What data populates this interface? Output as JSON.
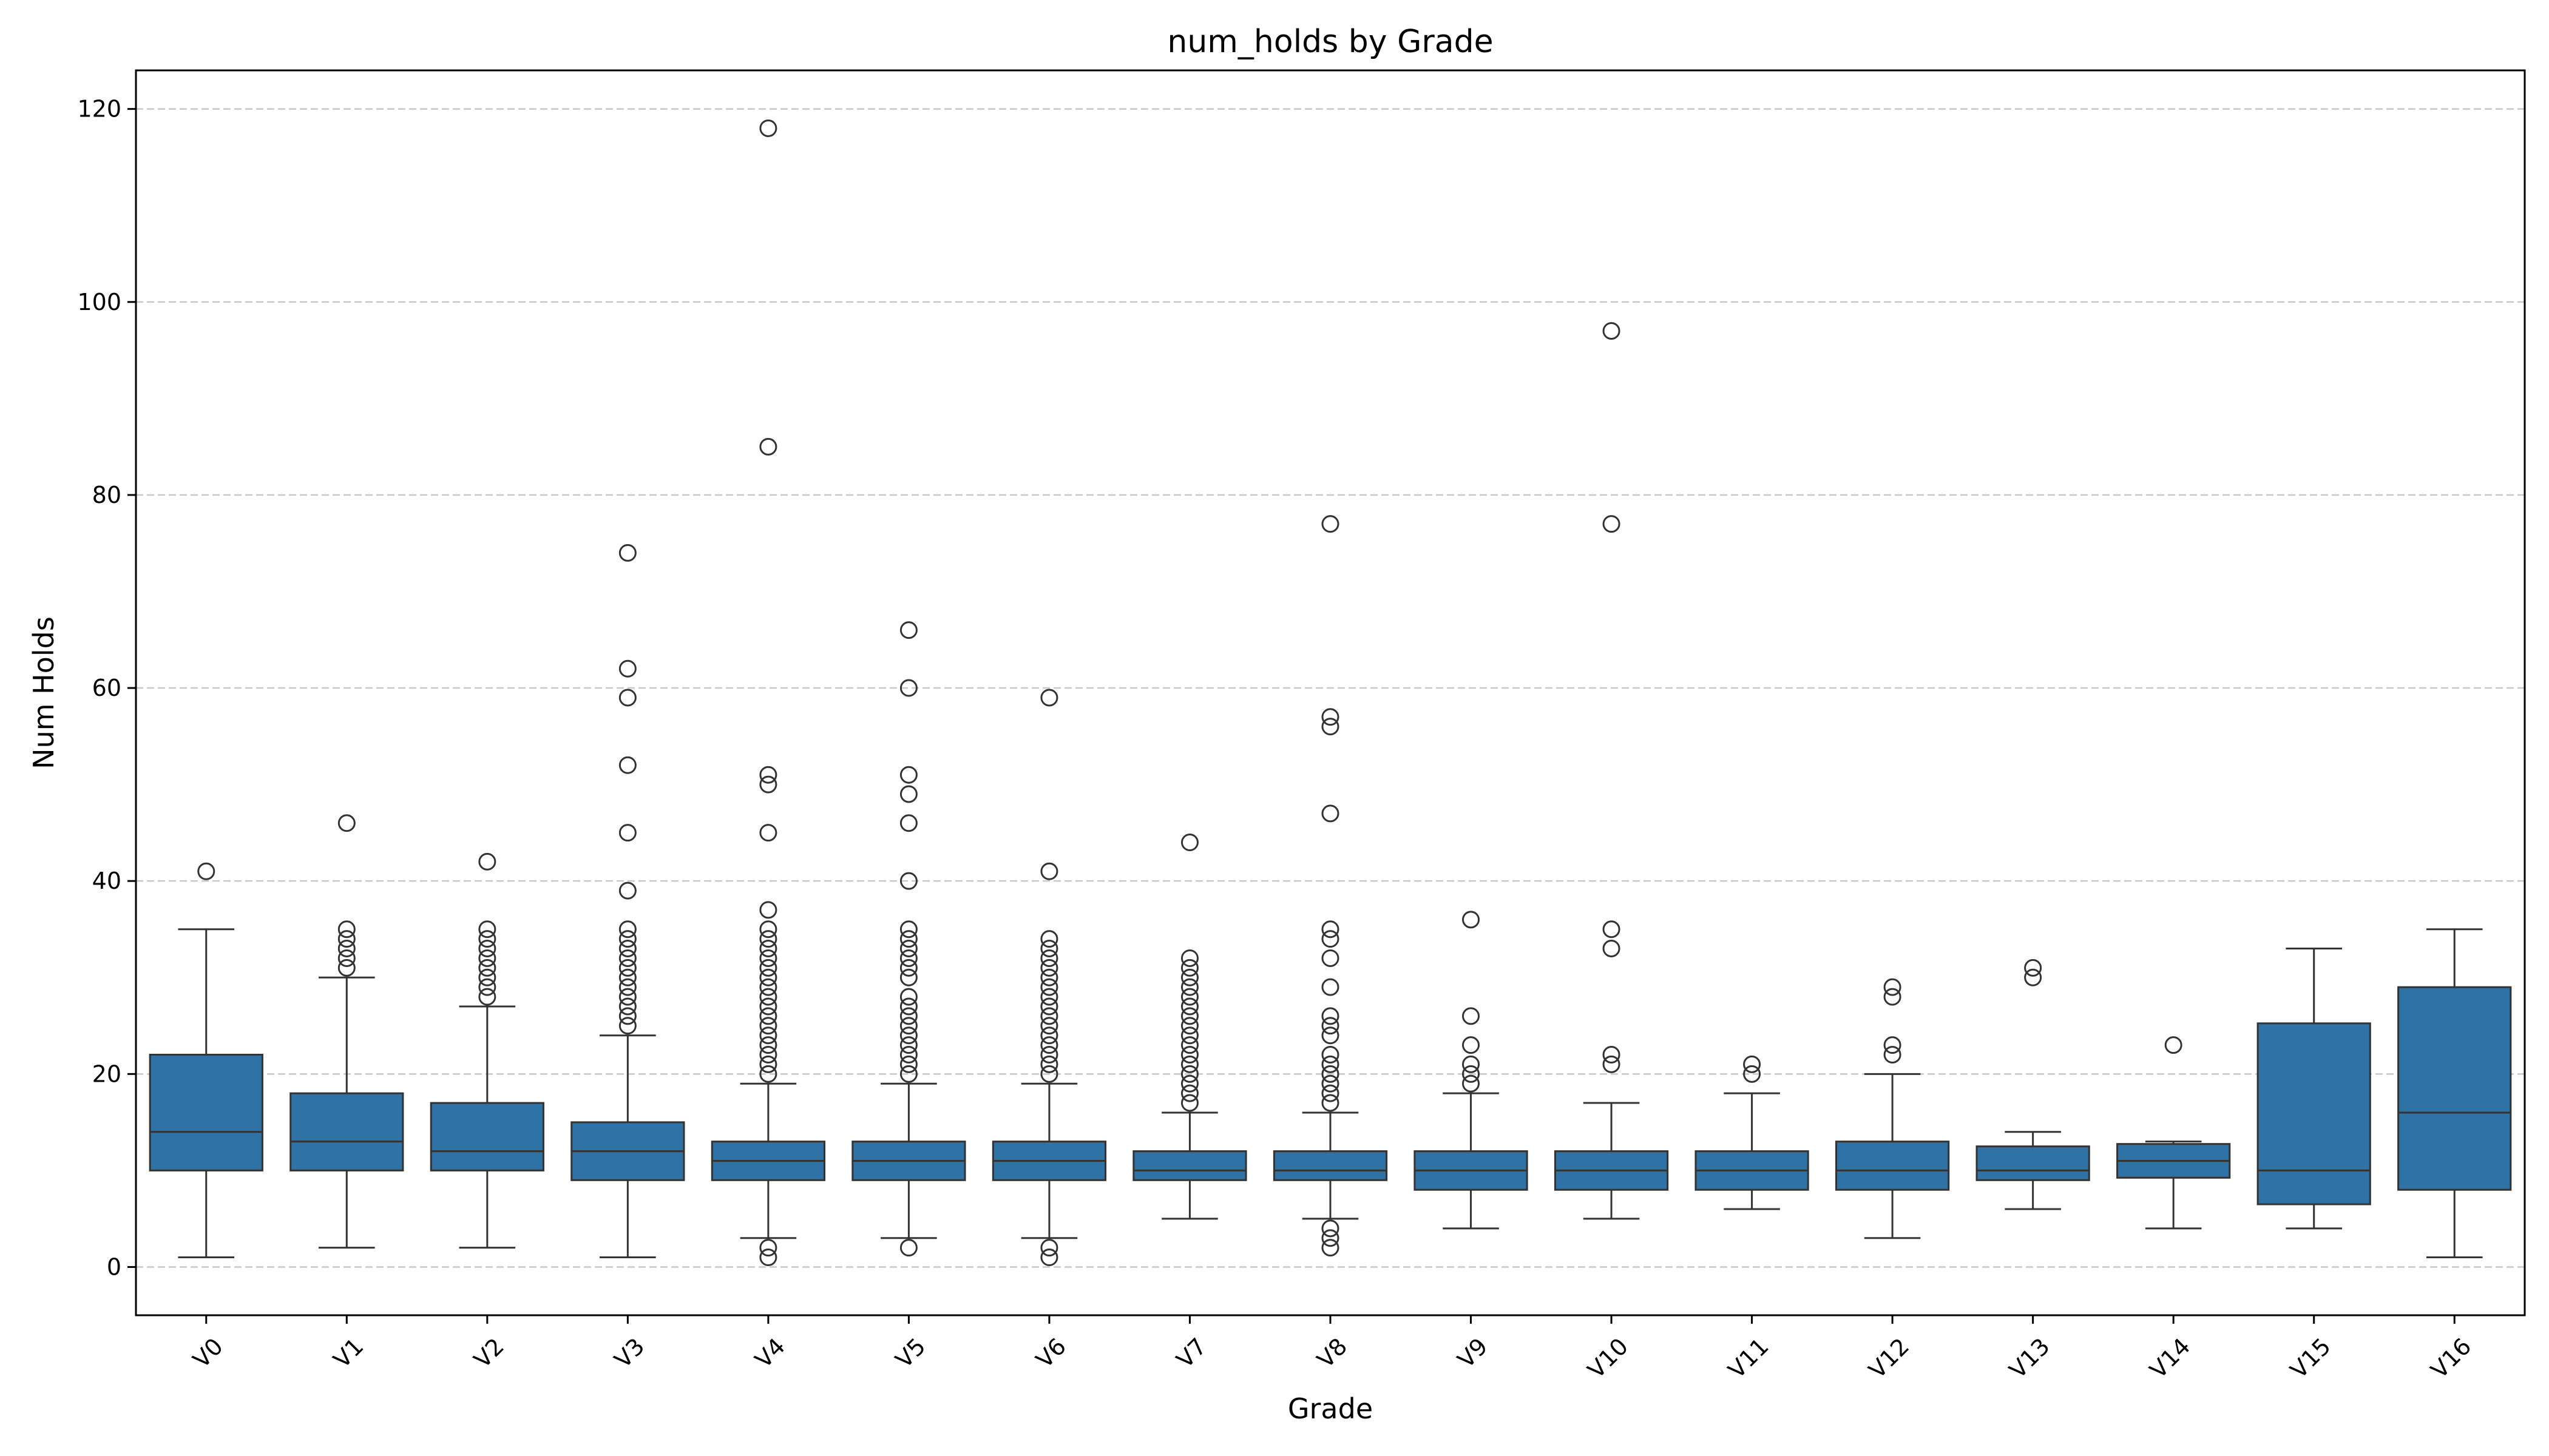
{
  "chart_data": {
    "type": "box",
    "title": "num_holds by Grade",
    "xlabel": "Grade",
    "ylabel": "Num Holds",
    "ylim": [
      -5,
      124
    ],
    "yticks": [
      0,
      20,
      40,
      60,
      80,
      100,
      120
    ],
    "grid": "y-dashed",
    "colors": {
      "box_fill": "#2e72a6",
      "line": "#333333",
      "grid": "#c8c8c8"
    },
    "categories": [
      "V0",
      "V1",
      "V2",
      "V3",
      "V4",
      "V5",
      "V6",
      "V7",
      "V8",
      "V9",
      "V10",
      "V11",
      "V12",
      "V13",
      "V14",
      "V15",
      "V16"
    ],
    "boxes": [
      {
        "grade": "V0",
        "whislo": 1,
        "q1": 10,
        "med": 14,
        "q3": 22,
        "whishi": 35,
        "fliers": [
          41
        ]
      },
      {
        "grade": "V1",
        "whislo": 2,
        "q1": 10,
        "med": 13,
        "q3": 18,
        "whishi": 30,
        "fliers": [
          31,
          32,
          33,
          34,
          35,
          46
        ]
      },
      {
        "grade": "V2",
        "whislo": 2,
        "q1": 10,
        "med": 12,
        "q3": 17,
        "whishi": 27,
        "fliers": [
          28,
          29,
          30,
          31,
          32,
          33,
          34,
          35,
          42
        ]
      },
      {
        "grade": "V3",
        "whislo": 1,
        "q1": 9,
        "med": 12,
        "q3": 15,
        "whishi": 24,
        "fliers": [
          25,
          26,
          27,
          28,
          29,
          30,
          31,
          32,
          33,
          34,
          35,
          39,
          45,
          52,
          59,
          62,
          74
        ]
      },
      {
        "grade": "V4",
        "whislo": 3,
        "q1": 9,
        "med": 11,
        "q3": 13,
        "whishi": 19,
        "fliers": [
          1,
          2,
          20,
          21,
          22,
          23,
          24,
          25,
          26,
          27,
          28,
          29,
          30,
          31,
          32,
          33,
          34,
          35,
          37,
          45,
          50,
          51,
          85,
          118
        ]
      },
      {
        "grade": "V5",
        "whislo": 3,
        "q1": 9,
        "med": 11,
        "q3": 13,
        "whishi": 19,
        "fliers": [
          2,
          20,
          21,
          22,
          23,
          24,
          25,
          26,
          27,
          28,
          30,
          31,
          32,
          33,
          34,
          35,
          40,
          46,
          49,
          51,
          60,
          66
        ]
      },
      {
        "grade": "V6",
        "whislo": 3,
        "q1": 9,
        "med": 11,
        "q3": 13,
        "whishi": 19,
        "fliers": [
          1,
          2,
          20,
          21,
          22,
          23,
          24,
          25,
          26,
          27,
          28,
          29,
          30,
          31,
          32,
          33,
          34,
          41,
          59
        ]
      },
      {
        "grade": "V7",
        "whislo": 5,
        "q1": 9,
        "med": 10,
        "q3": 12,
        "whishi": 16,
        "fliers": [
          17,
          18,
          19,
          20,
          21,
          22,
          23,
          24,
          25,
          26,
          27,
          28,
          29,
          30,
          31,
          32,
          44
        ]
      },
      {
        "grade": "V8",
        "whislo": 5,
        "q1": 9,
        "med": 10,
        "q3": 12,
        "whishi": 16,
        "fliers": [
          2,
          3,
          4,
          17,
          18,
          19,
          20,
          21,
          22,
          24,
          25,
          26,
          29,
          32,
          34,
          35,
          47,
          56,
          57,
          77
        ]
      },
      {
        "grade": "V9",
        "whislo": 4,
        "q1": 8,
        "med": 10,
        "q3": 12,
        "whishi": 18,
        "fliers": [
          19,
          20,
          21,
          23,
          26,
          36
        ]
      },
      {
        "grade": "V10",
        "whislo": 5,
        "q1": 8,
        "med": 10,
        "q3": 12,
        "whishi": 17,
        "fliers": [
          21,
          22,
          33,
          35,
          77,
          97
        ]
      },
      {
        "grade": "V11",
        "whislo": 6,
        "q1": 8,
        "med": 10,
        "q3": 12,
        "whishi": 18,
        "fliers": [
          20,
          21
        ]
      },
      {
        "grade": "V12",
        "whislo": 3,
        "q1": 8,
        "med": 10,
        "q3": 13,
        "whishi": 20,
        "fliers": [
          22,
          23,
          28,
          29
        ]
      },
      {
        "grade": "V13",
        "whislo": 6,
        "q1": 9,
        "med": 10,
        "q3": 12.5,
        "whishi": 14,
        "fliers": [
          30,
          31
        ]
      },
      {
        "grade": "V14",
        "whislo": 4,
        "q1": 9.25,
        "med": 11,
        "q3": 12.75,
        "whishi": 13,
        "fliers": [
          23
        ]
      },
      {
        "grade": "V15",
        "whislo": 4,
        "q1": 6.5,
        "med": 10,
        "q3": 25.25,
        "whishi": 33,
        "fliers": []
      },
      {
        "grade": "V16",
        "whislo": 1,
        "q1": 8,
        "med": 16,
        "q3": 29,
        "whishi": 35,
        "fliers": []
      }
    ]
  }
}
